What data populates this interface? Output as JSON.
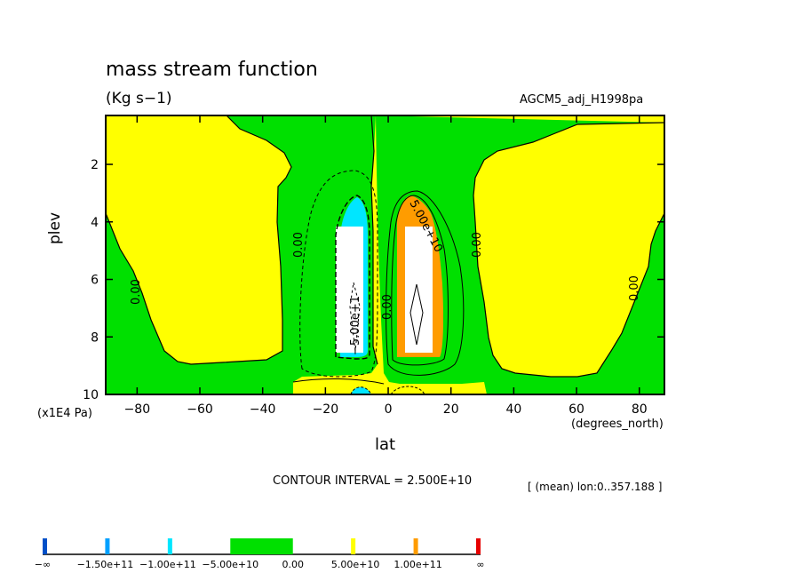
{
  "chart_data": {
    "type": "contour",
    "title": "mass stream function",
    "units": "(Kg s−1)",
    "dataset": "AGCM5_adj_H1998pa",
    "xlabel": "lat",
    "xunits": "(degrees_north)",
    "ylabel": "plev",
    "yunits": "(x1E4 Pa)",
    "xlim": [
      -90,
      88
    ],
    "ylim": [
      10,
      0.3
    ],
    "xticks": [
      -80,
      -60,
      -40,
      -20,
      0,
      20,
      40,
      60,
      80
    ],
    "yticks": [
      2,
      4,
      6,
      8,
      10
    ],
    "contour_interval_text": "CONTOUR INTERVAL = 2.500E+10",
    "note": "[ (mean) lon:0..357.188 ]",
    "contour_labels": [
      "0.00",
      "0.00",
      "0.00",
      "0.00",
      "0.00",
      "−5.00e+1",
      "5.00e+10"
    ],
    "regions": {
      "background": {
        "level": "0.00 to 5.00e+10",
        "color": "#ffff00"
      },
      "main_zero_zone": {
        "level": "−5.00e+10 to 0.00",
        "color": "#00e000"
      },
      "south_cell_core": {
        "level": "−1.00e+11 to −5.00e+10",
        "color": "#00e6ff",
        "min": "−1.5e+11"
      },
      "north_cell_core": {
        "level": "5.00e+10 to 1.00e+11",
        "color": "#ff9c00",
        "max": "1.5e+11"
      }
    },
    "colorbar": {
      "labels": [
        "−∞",
        "−1.50e+11",
        "−1.00e+11",
        "−5.00e+10",
        "0.00",
        "5.00e+10",
        "1.00e+11",
        "∞"
      ],
      "colors": [
        "#0050c8",
        "#00a0ff",
        "#00e6ff",
        "#00e000",
        "#ffff00",
        "#ff9c00",
        "#e60000"
      ]
    }
  }
}
